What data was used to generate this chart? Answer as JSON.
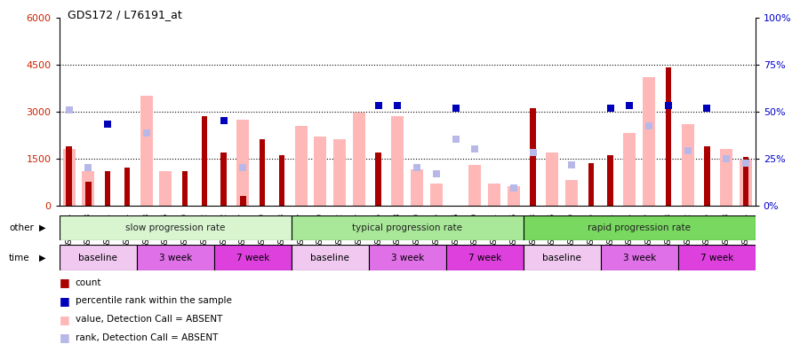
{
  "title": "GDS172 / L76191_at",
  "samples": [
    "GSM2784",
    "GSM2808",
    "GSM2811",
    "GSM2814",
    "GSM2783",
    "GSM2806",
    "GSM2809",
    "GSM2812",
    "GSM2782",
    "GSM2807",
    "GSM2810",
    "GSM2813",
    "GSM2787",
    "GSM2790",
    "GSM2802",
    "GSM2817",
    "GSM2785",
    "GSM2788",
    "GSM2800",
    "GSM2815",
    "GSM2786",
    "GSM2789",
    "GSM2801",
    "GSM2816",
    "GSM2793",
    "GSM2796",
    "GSM2799",
    "GSM2805",
    "GSM2791",
    "GSM2794",
    "GSM2797",
    "GSM2803",
    "GSM2792",
    "GSM2795",
    "GSM2798",
    "GSM2804"
  ],
  "count_values": [
    1900,
    750,
    1100,
    1200,
    null,
    null,
    1100,
    2850,
    1700,
    300,
    2100,
    1600,
    null,
    null,
    null,
    null,
    1700,
    null,
    null,
    null,
    null,
    null,
    null,
    null,
    3100,
    null,
    null,
    1350,
    1600,
    null,
    null,
    4400,
    null,
    1900,
    null,
    1550
  ],
  "percentile_rank": [
    null,
    null,
    2600,
    null,
    null,
    null,
    null,
    null,
    2700,
    null,
    null,
    null,
    null,
    null,
    null,
    null,
    3200,
    3200,
    null,
    null,
    3100,
    null,
    null,
    null,
    null,
    null,
    null,
    null,
    3100,
    3200,
    null,
    3200,
    null,
    3100,
    null,
    null
  ],
  "absent_value": [
    1800,
    1100,
    null,
    null,
    3500,
    1100,
    null,
    null,
    null,
    2750,
    null,
    null,
    2550,
    2200,
    2100,
    2950,
    null,
    2850,
    1150,
    700,
    null,
    1300,
    700,
    600,
    null,
    1700,
    800,
    null,
    null,
    2300,
    4100,
    null,
    2600,
    null,
    1800,
    1450
  ],
  "absent_rank": [
    3050,
    1200,
    null,
    null,
    2300,
    null,
    null,
    null,
    null,
    1200,
    null,
    null,
    null,
    null,
    null,
    null,
    null,
    null,
    1200,
    1000,
    2100,
    1800,
    null,
    550,
    1700,
    null,
    1300,
    null,
    null,
    null,
    2550,
    null,
    1750,
    null,
    1500,
    1350
  ],
  "progression_groups": [
    {
      "label": "slow progression rate",
      "start": 0,
      "end": 12,
      "color": "#d8f5d0"
    },
    {
      "label": "typical progression rate",
      "start": 12,
      "end": 24,
      "color": "#a8e898"
    },
    {
      "label": "rapid progression rate",
      "start": 24,
      "end": 36,
      "color": "#78d860"
    }
  ],
  "time_groups": [
    {
      "label": "baseline",
      "start": 0,
      "end": 4,
      "color": "#f0c8f0"
    },
    {
      "label": "3 week",
      "start": 4,
      "end": 8,
      "color": "#e070e8"
    },
    {
      "label": "7 week",
      "start": 8,
      "end": 12,
      "color": "#dd40dd"
    },
    {
      "label": "baseline",
      "start": 12,
      "end": 16,
      "color": "#f0c8f0"
    },
    {
      "label": "3 week",
      "start": 16,
      "end": 20,
      "color": "#e070e8"
    },
    {
      "label": "7 week",
      "start": 20,
      "end": 24,
      "color": "#dd40dd"
    },
    {
      "label": "baseline",
      "start": 24,
      "end": 28,
      "color": "#f0c8f0"
    },
    {
      "label": "3 week",
      "start": 28,
      "end": 32,
      "color": "#e070e8"
    },
    {
      "label": "7 week",
      "start": 32,
      "end": 36,
      "color": "#dd40dd"
    }
  ],
  "ylim_left": [
    0,
    6000
  ],
  "ylim_right": [
    0,
    100
  ],
  "yticks_left": [
    0,
    1500,
    3000,
    4500,
    6000
  ],
  "yticks_right": [
    0,
    25,
    50,
    75,
    100
  ],
  "color_count": "#aa0000",
  "color_percentile": "#0000bb",
  "color_absent_value": "#ffb8b8",
  "color_absent_rank": "#b8b8e8",
  "bar_width": 0.65,
  "marker_size": 6
}
